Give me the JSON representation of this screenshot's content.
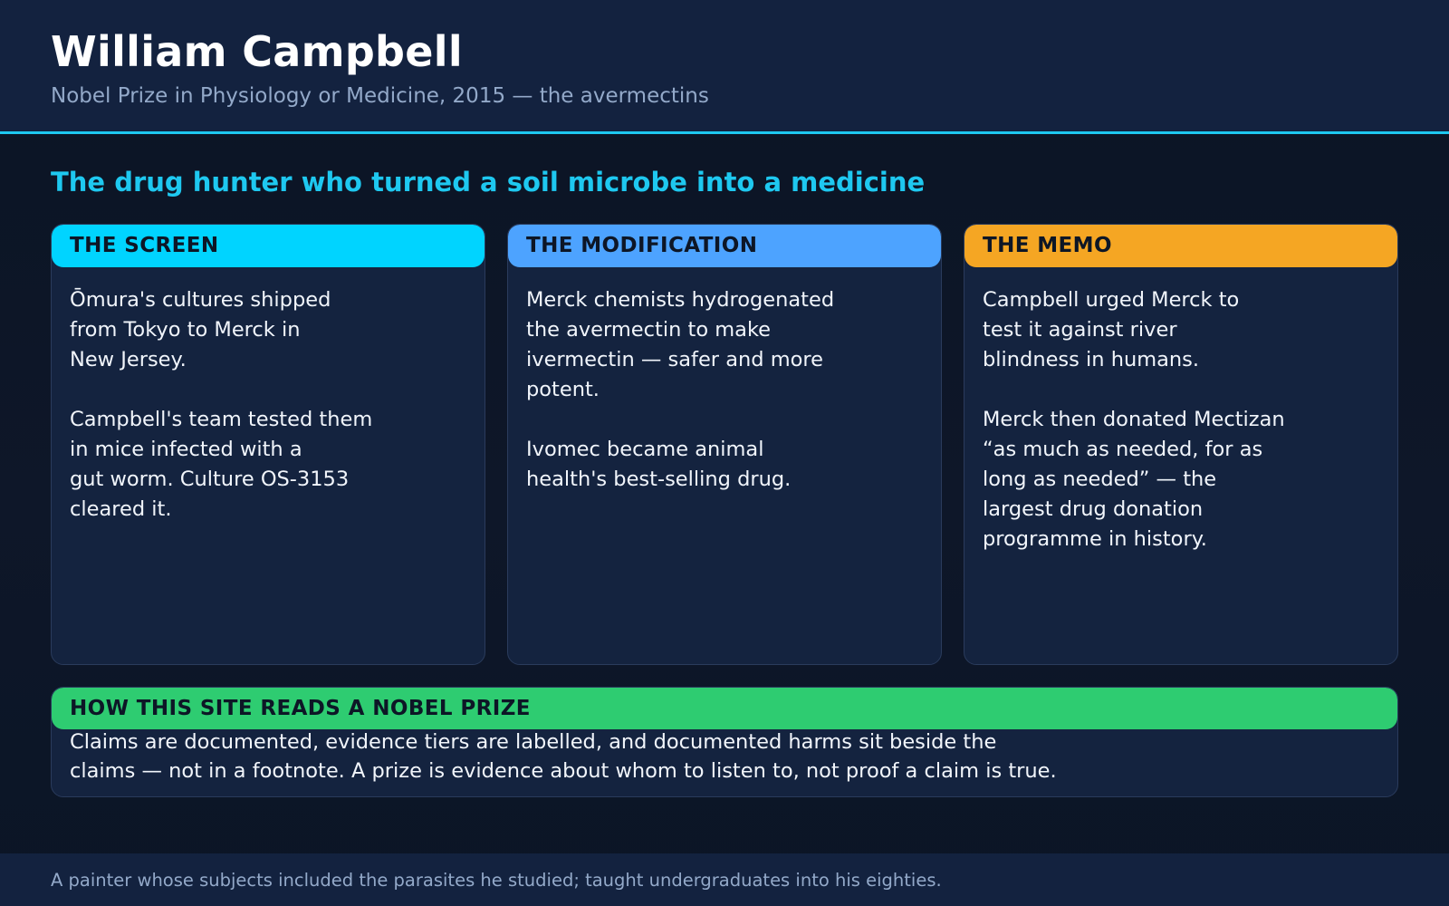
{
  "header": {
    "title": "William Campbell",
    "subtitle": "Nobel Prize in Physiology or Medicine, 2015 — the avermectins"
  },
  "headline": "The drug hunter who turned a soil microbe into a medicine",
  "cards": [
    {
      "heading": "THE SCREEN",
      "color": "#00d4ff",
      "body": "Ōmura's cultures shipped\nfrom Tokyo to Merck in\nNew Jersey.\n\nCampbell's team tested them\nin mice infected with a\ngut worm. Culture OS-3153\ncleared it."
    },
    {
      "heading": "THE MODIFICATION",
      "color": "#4da3ff",
      "body": "Merck chemists hydrogenated\nthe avermectin to make\nivermectin — safer and more\npotent.\n\nIvomec became animal\nhealth's best-selling drug."
    },
    {
      "heading": "THE MEMO",
      "color": "#f5a623",
      "body": "Campbell urged Merck to\ntest it against river\nblindness in humans.\n\nMerck then donated Mectizan\n“as much as needed, for as\nlong as needed” — the\nlargest drug donation\nprogramme in history."
    }
  ],
  "method": {
    "heading": "HOW THIS SITE READS A NOBEL PRIZE",
    "color": "#2ecc71",
    "body": "Claims are documented, evidence tiers are labelled, and documented harms sit beside the\nclaims — not in a footnote. A prize is evidence about whom to listen to, not proof a claim is true."
  },
  "footer": {
    "note": "A painter whose subjects included the parasites he studied; taught undergraduates into his eighties."
  },
  "colors": {
    "accent": "#1ec8f0",
    "background": "#0e1729",
    "panel": "#14233f"
  }
}
